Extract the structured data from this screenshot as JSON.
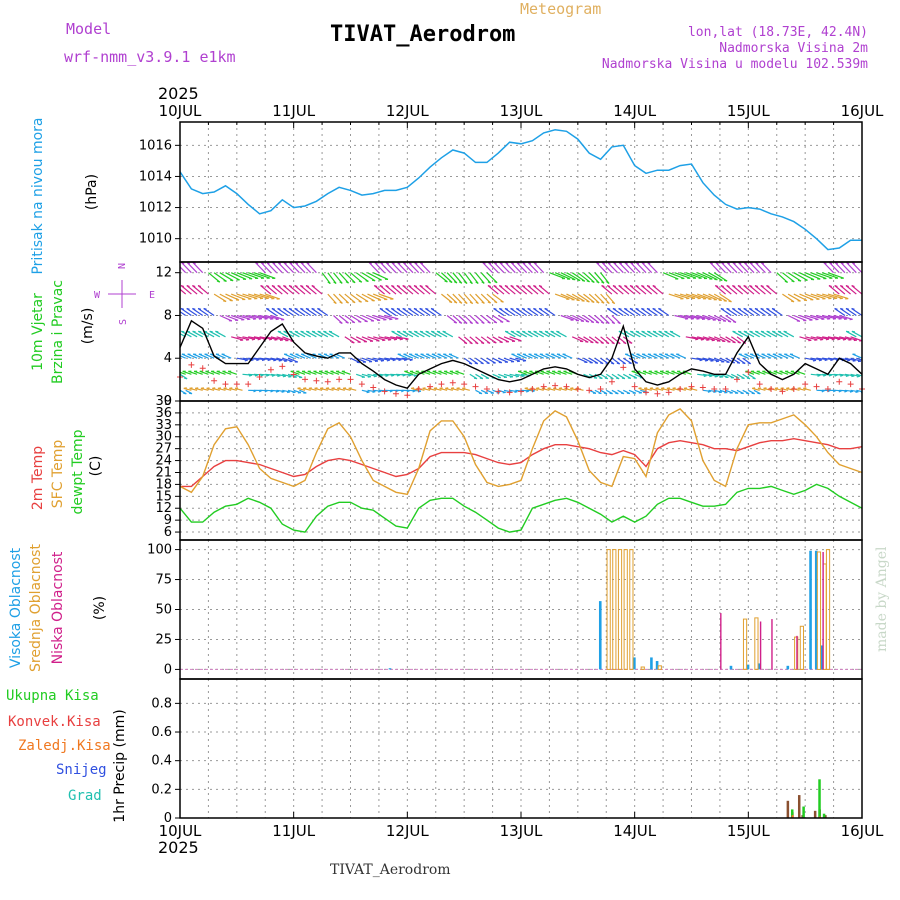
{
  "header": {
    "model_label": "Model",
    "model_name": "wrf-nmm_v3.9.1 e1km",
    "meteogram_label": "Meteogram",
    "station_title": "TIVAT_Aerodrom",
    "lonlat": "lon,lat (18.73E, 42.4N)",
    "elevation": "Nadmorska Visina 2m",
    "model_elevation": "Nadmorska Visina u modelu 102.539m",
    "footer_station": "TIVAT_Aerodrom",
    "credit": "made by Angel"
  },
  "colors": {
    "pressure": "#1ea0e6",
    "wind_label": "#22cc22",
    "temp2m": "#e84040",
    "sfc_temp": "#e0a030",
    "dewpoint": "#22cc22",
    "high_cloud": "#1ea0e6",
    "mid_cloud": "#e0a030",
    "low_cloud": "#d0208a",
    "total_precip": "#22cc22",
    "conv_precip": "#e84040",
    "frozen_precip": "#f07820",
    "snow": "#3050e0",
    "graupel": "#20c0b0",
    "compass": "#b040d0",
    "grid": "#999999"
  },
  "time_axis": {
    "year": "2025",
    "tick_labels": [
      "10JUL",
      "11JUL",
      "12JUL",
      "13JUL",
      "14JUL",
      "15JUL",
      "16JUL"
    ]
  },
  "compass": {
    "n": "N",
    "w": "W",
    "e": "E",
    "s": "S"
  },
  "chart_data": [
    {
      "type": "line",
      "panel": "pressure",
      "ylabel_lines": [
        "Pritisak na nivou mora"
      ],
      "unit": "(hPa)",
      "ylim": [
        1008.5,
        1017.5
      ],
      "yticks": [
        1010,
        1012,
        1014,
        1016
      ],
      "ytick_labels": [
        "1010",
        "1012",
        "1014",
        "1016"
      ],
      "x_days": [
        0,
        0.1,
        0.2,
        0.3,
        0.4,
        0.5,
        0.6,
        0.7,
        0.8,
        0.9,
        1.0,
        1.1,
        1.2,
        1.3,
        1.4,
        1.5,
        1.6,
        1.7,
        1.8,
        1.9,
        2.0,
        2.1,
        2.2,
        2.3,
        2.4,
        2.5,
        2.6,
        2.7,
        2.8,
        2.9,
        3.0,
        3.1,
        3.2,
        3.3,
        3.4,
        3.5,
        3.6,
        3.7,
        3.8,
        3.9,
        4.0,
        4.1,
        4.2,
        4.3,
        4.4,
        4.5,
        4.6,
        4.7,
        4.8,
        4.9,
        5.0,
        5.1,
        5.2,
        5.3,
        5.4,
        5.5,
        5.6,
        5.7,
        5.8,
        5.9,
        6.0
      ],
      "series": [
        {
          "values": [
            1014.3,
            1013.2,
            1012.9,
            1013.0,
            1013.4,
            1012.9,
            1012.2,
            1011.6,
            1011.8,
            1012.5,
            1012.0,
            1012.1,
            1012.4,
            1012.9,
            1013.3,
            1013.1,
            1012.8,
            1012.9,
            1013.1,
            1013.1,
            1013.3,
            1013.9,
            1014.6,
            1015.2,
            1015.7,
            1015.5,
            1014.9,
            1014.9,
            1015.5,
            1016.2,
            1016.1,
            1016.3,
            1016.8,
            1017.0,
            1016.9,
            1016.4,
            1015.5,
            1015.1,
            1015.9,
            1016.0,
            1014.7,
            1014.2,
            1014.4,
            1014.4,
            1014.7,
            1014.8,
            1013.6,
            1012.8,
            1012.2,
            1011.9,
            1012.0,
            1011.9,
            1011.6,
            1011.4,
            1011.1,
            1010.6,
            1010.0,
            1009.3,
            1009.4,
            1009.9,
            1009.9
          ]
        }
      ]
    },
    {
      "type": "line",
      "panel": "wind",
      "ylabel_lines": [
        "10m Vjetar",
        "Brzina i Pravac"
      ],
      "unit": "(m/s)",
      "ylim": [
        0,
        13
      ],
      "yticks": [
        0,
        4,
        8,
        12
      ],
      "ytick_labels": [
        "0",
        "4",
        "8",
        "12"
      ],
      "x_days": [
        0,
        0.1,
        0.2,
        0.3,
        0.4,
        0.5,
        0.6,
        0.7,
        0.8,
        0.9,
        1.0,
        1.1,
        1.2,
        1.3,
        1.4,
        1.5,
        1.6,
        1.7,
        1.8,
        1.9,
        2.0,
        2.1,
        2.2,
        2.3,
        2.4,
        2.5,
        2.6,
        2.7,
        2.8,
        2.9,
        3.0,
        3.1,
        3.2,
        3.3,
        3.4,
        3.5,
        3.6,
        3.7,
        3.8,
        3.9,
        4.0,
        4.1,
        4.2,
        4.3,
        4.4,
        4.5,
        4.6,
        4.7,
        4.8,
        4.9,
        5.0,
        5.1,
        5.2,
        5.3,
        5.4,
        5.5,
        5.6,
        5.7,
        5.8,
        5.9,
        6.0
      ],
      "series": [
        {
          "values": [
            5.0,
            7.5,
            6.8,
            4.2,
            3.5,
            3.5,
            3.5,
            5.0,
            6.5,
            7.2,
            5.5,
            4.5,
            4.2,
            4.0,
            4.5,
            4.5,
            3.5,
            2.8,
            2.0,
            1.5,
            1.2,
            2.5,
            3.0,
            3.5,
            3.8,
            3.5,
            3.0,
            2.5,
            2.0,
            1.8,
            2.0,
            2.5,
            3.0,
            3.2,
            3.0,
            2.5,
            2.2,
            2.5,
            4.0,
            7.0,
            3.0,
            1.8,
            1.5,
            1.8,
            2.5,
            3.0,
            2.8,
            2.5,
            2.5,
            4.5,
            6.0,
            3.5,
            2.5,
            2.0,
            2.5,
            3.5,
            3.0,
            2.5,
            4.0,
            3.5,
            2.5
          ]
        }
      ]
    },
    {
      "type": "line",
      "panel": "temperature",
      "ylabel_lines": [
        "2m Temp",
        "SFC Temp",
        "dewpt Temp"
      ],
      "unit": "(C)",
      "ylim": [
        4,
        39
      ],
      "yticks": [
        6,
        9,
        12,
        15,
        18,
        21,
        24,
        27,
        30,
        33,
        36,
        39
      ],
      "ytick_labels": [
        "6",
        "9",
        "12",
        "15",
        "18",
        "21",
        "24",
        "27",
        "30",
        "33",
        "36",
        "39"
      ],
      "x_days": [
        0,
        0.1,
        0.2,
        0.3,
        0.4,
        0.5,
        0.6,
        0.7,
        0.8,
        0.9,
        1.0,
        1.1,
        1.2,
        1.3,
        1.4,
        1.5,
        1.6,
        1.7,
        1.8,
        1.9,
        2.0,
        2.1,
        2.2,
        2.3,
        2.4,
        2.5,
        2.6,
        2.7,
        2.8,
        2.9,
        3.0,
        3.1,
        3.2,
        3.3,
        3.4,
        3.5,
        3.6,
        3.7,
        3.8,
        3.9,
        4.0,
        4.1,
        4.2,
        4.3,
        4.4,
        4.5,
        4.6,
        4.7,
        4.8,
        4.9,
        5.0,
        5.1,
        5.2,
        5.3,
        5.4,
        5.5,
        5.6,
        5.7,
        5.8,
        5.9,
        6.0
      ],
      "series": [
        {
          "values": [
            17.5,
            17.5,
            20.0,
            22.5,
            24.0,
            24.0,
            23.5,
            23.0,
            22.0,
            21.0,
            20.0,
            20.5,
            22.5,
            24.0,
            24.5,
            24.0,
            23.0,
            22.0,
            21.0,
            20.0,
            20.5,
            22.0,
            25.0,
            26.0,
            26.0,
            26.0,
            25.5,
            24.5,
            23.5,
            23.0,
            23.5,
            25.5,
            27.0,
            28.0,
            28.0,
            27.5,
            27.0,
            26.0,
            25.5,
            26.5,
            25.5,
            22.5,
            27.0,
            28.5,
            29.0,
            28.5,
            28.0,
            27.0,
            27.0,
            26.5,
            27.5,
            28.5,
            29.0,
            29.0,
            29.5,
            29.0,
            28.5,
            28.0,
            27.0,
            27.0,
            27.5
          ]
        },
        {
          "values": [
            17.5,
            16.0,
            20.0,
            28.0,
            32.0,
            32.5,
            28.0,
            22.0,
            19.5,
            18.5,
            17.5,
            19.0,
            26.0,
            32.0,
            33.5,
            30.0,
            24.0,
            19.0,
            17.5,
            16.0,
            15.5,
            22.0,
            31.5,
            34.0,
            34.0,
            30.0,
            23.0,
            18.5,
            17.5,
            18.0,
            19.0,
            27.0,
            34.0,
            36.5,
            35.0,
            29.0,
            21.5,
            18.5,
            17.5,
            25.0,
            24.5,
            20.0,
            31.0,
            35.5,
            37.0,
            34.0,
            24.0,
            19.0,
            17.5,
            27.0,
            33.0,
            33.5,
            33.5,
            34.5,
            35.5,
            33.0,
            30.0,
            26.0,
            23.0,
            22.0,
            21.0
          ]
        },
        {
          "values": [
            12.0,
            8.5,
            8.5,
            11.0,
            12.5,
            13.0,
            14.5,
            13.5,
            12.0,
            8.0,
            6.5,
            6.0,
            10.0,
            12.5,
            13.5,
            13.5,
            12.0,
            11.5,
            9.5,
            7.5,
            7.0,
            12.0,
            14.0,
            14.5,
            14.5,
            12.5,
            11.0,
            9.0,
            7.0,
            6.0,
            6.5,
            12.0,
            13.0,
            14.0,
            14.5,
            13.5,
            12.0,
            10.5,
            8.5,
            10.0,
            8.5,
            10.0,
            13.0,
            14.5,
            14.5,
            13.5,
            12.5,
            12.5,
            13.0,
            16.0,
            17.0,
            17.0,
            17.5,
            16.5,
            15.5,
            16.5,
            18.0,
            17.0,
            15.0,
            13.5,
            12.0
          ]
        }
      ]
    },
    {
      "type": "bar",
      "panel": "cloud_cover",
      "ylabel_lines": [
        "Visoka Oblacnost",
        "Srednja Oblacnost",
        "Niska Oblacnost"
      ],
      "unit": "(%)",
      "ylim": [
        -8,
        108
      ],
      "yticks": [
        0,
        25,
        50,
        75,
        100
      ],
      "ytick_labels": [
        "0",
        "25",
        "50",
        "75",
        "100"
      ],
      "high": {
        "x_days": [
          1.85,
          3.7,
          4.0,
          4.15,
          4.2,
          4.85,
          5.0,
          5.1,
          5.35,
          5.55,
          5.6,
          5.65
        ],
        "values": [
          1,
          57,
          10,
          10,
          7,
          3,
          4,
          5,
          3,
          99,
          99,
          20
        ]
      },
      "middle": {
        "x_days": [
          3.75,
          3.8,
          3.85,
          3.9,
          3.95,
          4.05,
          4.2,
          4.95,
          5.05,
          5.4,
          5.45,
          5.6,
          5.65,
          5.68
        ],
        "values": [
          100,
          100,
          100,
          100,
          100,
          2,
          3,
          42,
          43,
          27,
          36,
          98,
          88,
          100
        ]
      },
      "low": {
        "x_days": [
          4.75,
          5.1,
          5.2,
          5.42,
          5.65
        ],
        "values": [
          47,
          40,
          42,
          28,
          98
        ]
      }
    },
    {
      "type": "bar",
      "panel": "precipitation",
      "ylabel_lines": [
        "Ukupna Kisa",
        "Konvek.Kisa",
        "Zaledj.Kisa",
        "Snijeg",
        "Grad"
      ],
      "unit": "1hr Precip (mm)",
      "ylim": [
        0,
        0.97
      ],
      "yticks": [
        0,
        0.2,
        0.4,
        0.6,
        0.8
      ],
      "ytick_labels": [
        "0",
        "0.2",
        "0.4",
        "0.6",
        "0.8"
      ],
      "total": {
        "x_days": [
          5.37,
          5.47,
          5.61,
          5.65
        ],
        "values": [
          0.06,
          0.08,
          0.27,
          0.03
        ]
      },
      "conv": {
        "x_days": [
          5.35,
          5.39,
          5.45,
          5.48,
          5.59,
          5.63,
          5.68
        ],
        "values": [
          0.12,
          0.04,
          0.16,
          0.02,
          0.05,
          0.06,
          0.02
        ]
      },
      "frozen": {
        "x_days": [
          5.36,
          5.6
        ],
        "values": [
          0.02,
          0.01
        ]
      }
    }
  ]
}
